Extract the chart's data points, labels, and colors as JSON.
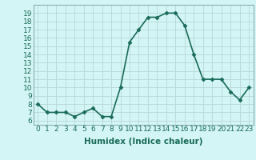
{
  "x": [
    0,
    1,
    2,
    3,
    4,
    5,
    6,
    7,
    8,
    9,
    10,
    11,
    12,
    13,
    14,
    15,
    16,
    17,
    18,
    19,
    20,
    21,
    22,
    23
  ],
  "y": [
    8,
    7,
    7,
    7,
    6.5,
    7,
    7.5,
    6.5,
    6.5,
    10,
    15.5,
    17,
    18.5,
    18.5,
    19,
    19,
    17.5,
    14,
    11,
    11,
    11,
    9.5,
    8.5,
    10
  ],
  "line_color": "#1a6b5a",
  "marker": "D",
  "marker_size": 2.5,
  "linewidth": 1.2,
  "xlabel": "Humidex (Indice chaleur)",
  "xlim": [
    -0.5,
    23.5
  ],
  "ylim": [
    5.5,
    20.0
  ],
  "yticks": [
    6,
    7,
    8,
    9,
    10,
    11,
    12,
    13,
    14,
    15,
    16,
    17,
    18,
    19
  ],
  "xtick_labels": [
    "0",
    "1",
    "2",
    "3",
    "4",
    "5",
    "6",
    "7",
    "8",
    "9",
    "10",
    "11",
    "12",
    "13",
    "14",
    "15",
    "16",
    "17",
    "18",
    "19",
    "20",
    "21",
    "22",
    "23"
  ],
  "bg_color": "#d4f5f5",
  "grid_color": "#b8d8d8",
  "spine_color": "#8ab0b0",
  "tick_color": "#1a6b5a",
  "xlabel_fontsize": 7.5,
  "tick_fontsize": 6.5
}
